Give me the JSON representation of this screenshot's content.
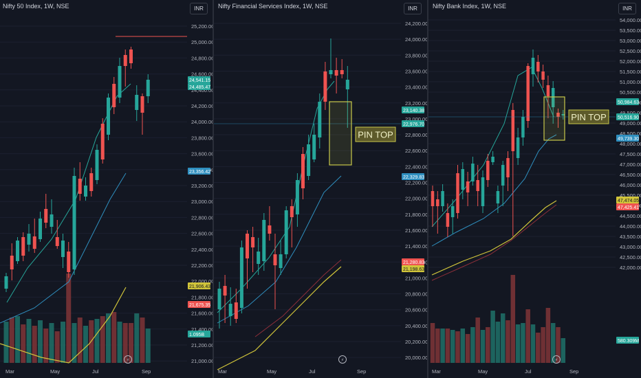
{
  "colors": {
    "up": "#26a69a",
    "down": "#ef5350",
    "ma_short": "#26a69a",
    "ma_mid": "#2f8fbf",
    "ma_long": "#d1c53a",
    "ma_dark": "#8d2f3a",
    "bg": "#131722",
    "pin_top": "#c9c84a"
  },
  "currency_button": "INR",
  "panels": [
    {
      "title": "Nifty 50 Index, 1W, NSE",
      "y_ticks": [
        "25,200.00",
        "25,000.00",
        "24,800.00",
        "24,600.00",
        "24,400.00",
        "24,200.00",
        "24,000.00",
        "23,800.00",
        "23,600.00",
        "23,400.00",
        "23,200.00",
        "23,000.00",
        "22,800.00",
        "22,600.00",
        "22,400.00",
        "22,200.00",
        "22,000.00",
        "21,800.00",
        "21,600.00",
        "21,400.00",
        "21,200.00",
        "21,000.00"
      ],
      "x_ticks": [
        "Mar",
        "May",
        "Jul",
        "Sep"
      ],
      "price_badges": [
        {
          "text": "24,541.15",
          "type": "up"
        },
        {
          "text": "24,485.47",
          "type": "up"
        },
        {
          "text": "23,356.42",
          "type": "mid"
        },
        {
          "text": "21,906.43",
          "type": "long"
        },
        {
          "text": "21,675.35",
          "type": "down"
        },
        {
          "text": "1.095B",
          "type": "up"
        }
      ],
      "annotation": ""
    },
    {
      "title": "Nifty Financial Services Index, 1W, NSE",
      "y_ticks": [
        "24,200.00",
        "24,000.00",
        "23,800.00",
        "23,600.00",
        "23,400.00",
        "23,200.00",
        "23,000.00",
        "22,800.00",
        "22,600.00",
        "22,400.00",
        "22,200.00",
        "22,000.00",
        "21,800.00",
        "21,600.00",
        "21,400.00",
        "21,200.00",
        "21,000.00",
        "20,800.00",
        "20,600.00",
        "20,400.00",
        "20,200.00",
        "20,000.00"
      ],
      "x_ticks": [
        "Mar",
        "May",
        "Jul",
        "Sep"
      ],
      "price_badges": [
        {
          "text": "23,140.38",
          "type": "up"
        },
        {
          "text": "22,976.70",
          "type": "up"
        },
        {
          "text": "22,329.83",
          "type": "mid"
        },
        {
          "text": "21,280.83",
          "type": "down"
        },
        {
          "text": "21,198.63",
          "type": "long"
        }
      ],
      "annotation": "PIN TOP"
    },
    {
      "title": "Nifty Bank Index, 1W, NSE",
      "y_ticks": [
        "54,000.00",
        "53,500.00",
        "53,000.00",
        "52,500.00",
        "52,000.00",
        "51,500.00",
        "51,000.00",
        "50,500.00",
        "50,000.00",
        "49,500.00",
        "49,000.00",
        "48,500.00",
        "48,000.00",
        "47,500.00",
        "47,000.00",
        "46,500.00",
        "46,000.00",
        "45,500.00",
        "45,000.00",
        "44,500.00",
        "44,000.00",
        "43,500.00",
        "43,000.00",
        "42,500.00",
        "42,000.00"
      ],
      "x_ticks": [
        "Mar",
        "May",
        "Jul",
        "Sep"
      ],
      "price_badges": [
        {
          "text": "50,984.63",
          "type": "up"
        },
        {
          "text": "50,516.90",
          "type": "up"
        },
        {
          "text": "49,739.30",
          "type": "mid"
        },
        {
          "text": "47,474.05",
          "type": "long"
        },
        {
          "text": "47,425.41",
          "type": "down"
        },
        {
          "text": "580.309M",
          "type": "up"
        }
      ],
      "annotation": "PIN TOP"
    }
  ]
}
